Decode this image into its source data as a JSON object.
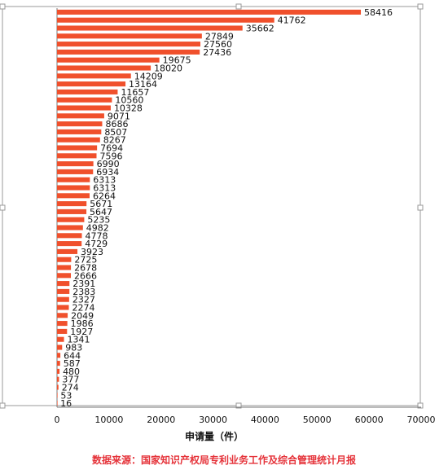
{
  "chart_data": {
    "type": "bar",
    "orientation": "horizontal",
    "values": [
      58416,
      41762,
      35662,
      27849,
      27560,
      27436,
      19675,
      18020,
      14209,
      13164,
      11657,
      10560,
      10328,
      9071,
      8686,
      8507,
      8267,
      7694,
      7596,
      6990,
      6934,
      6313,
      6313,
      6264,
      5671,
      5647,
      5235,
      4982,
      4778,
      4729,
      3923,
      2725,
      2678,
      2666,
      2391,
      2383,
      2327,
      2274,
      2049,
      1986,
      1927,
      1341,
      983,
      644,
      587,
      480,
      377,
      274,
      53,
      16
    ],
    "value_labels": [
      "58416",
      "41762",
      "35662",
      "27849",
      "27560",
      "27436",
      "19675",
      "18020",
      "14209",
      "13164",
      "11657",
      "10560",
      "10328",
      "9071",
      "8686",
      "8507",
      "8267",
      "7694",
      "7596",
      "6990",
      "6934",
      "6313",
      "6313",
      "6264",
      "5671",
      "5647",
      "5235",
      "4982",
      "4778",
      "4729",
      "3923",
      "2725",
      "2678",
      "2666",
      "2391",
      "2383",
      "2327",
      "2274",
      "2049",
      "1986",
      "1927",
      "1341",
      "983",
      "644",
      "587",
      "480",
      "377",
      "274",
      "53",
      "16"
    ],
    "xlabel": "申请量（件）",
    "xlim": [
      0,
      70000
    ],
    "xticks": [
      0,
      10000,
      20000,
      30000,
      40000,
      50000,
      60000,
      70000
    ],
    "xtick_labels": [
      "0",
      "10000",
      "20000",
      "30000",
      "40000",
      "50000",
      "60000",
      "70000"
    ],
    "grid": false,
    "bar_color": "#f0502c"
  },
  "source_text": "数据来源：国家知识产权局专利业务工作及综合管理统计月报",
  "colors": {
    "bar": "#f0502c",
    "source": "#e5333a",
    "axis": "#777777"
  }
}
